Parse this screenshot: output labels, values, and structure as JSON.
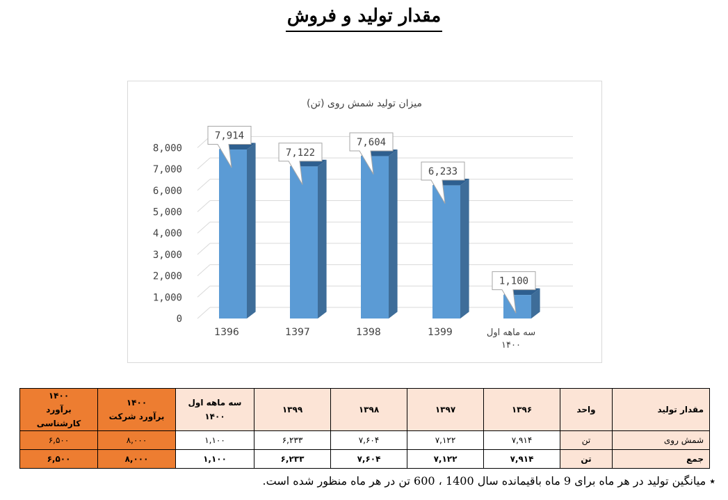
{
  "page": {
    "title": "مقدار تولید و فروش",
    "footnote": "٭ میانگین تولید در هر ماه برای 9 ماه باقیمانده سال 1400 ، 600 تن در هر ماه منظور شده است."
  },
  "chart_data": {
    "type": "bar",
    "title": "میزان تولید شمش روی (تن)",
    "categories": [
      "1396",
      "1397",
      "1398",
      "1399",
      "سه ماهه اول ۱۴۰۰"
    ],
    "category_lines": [
      [
        "1396"
      ],
      [
        "1397"
      ],
      [
        "1398"
      ],
      [
        "1399"
      ],
      [
        "سه ماهه اول",
        "۱۴۰۰"
      ]
    ],
    "values": [
      7914,
      7122,
      7604,
      6233,
      1100
    ],
    "data_labels": [
      "7,914",
      "7,122",
      "7,604",
      "6,233",
      "1,100"
    ],
    "yticks": [
      "0",
      "1,000",
      "2,000",
      "3,000",
      "4,000",
      "5,000",
      "6,000",
      "7,000",
      "8,000"
    ],
    "ylim": [
      0,
      8000
    ],
    "grid": true,
    "bar_style": "3d",
    "colors": {
      "bar_front": "#5b9bd5",
      "bar_side": "#3e6d99",
      "bar_top": "#2e5f8f",
      "grid": "#d9d9d9"
    }
  },
  "table": {
    "headers": [
      "مقدار تولید",
      "واحد",
      "۱۳۹۶",
      "۱۳۹۷",
      "۱۳۹۸",
      "۱۳۹۹",
      "سه ماهه اول ۱۴۰۰",
      "۱۴۰۰\nبرآورد شرکت",
      "۱۴۰۰\nبرآورد کارشناسی"
    ],
    "header_lines": [
      [
        "مقدار تولید"
      ],
      [
        "واحد"
      ],
      [
        "۱۳۹۶"
      ],
      [
        "۱۳۹۷"
      ],
      [
        "۱۳۹۸"
      ],
      [
        "۱۳۹۹"
      ],
      [
        "سه ماهه اول ۱۴۰۰"
      ],
      [
        "۱۴۰۰",
        "برآورد شرکت"
      ],
      [
        "۱۴۰۰",
        "برآورد کارشناسی"
      ]
    ],
    "rows": [
      [
        "شمش روی",
        "تن",
        "۷,۹۱۴",
        "۷,۱۲۲",
        "۷,۶۰۴",
        "۶,۲۳۳",
        "۱,۱۰۰",
        "۸,۰۰۰",
        "۶,۵۰۰"
      ],
      [
        "جمع",
        "تن",
        "۷,۹۱۴",
        "۷,۱۲۲",
        "۷,۶۰۴",
        "۶,۲۳۳",
        "۱,۱۰۰",
        "۸,۰۰۰",
        "۶,۵۰۰"
      ]
    ],
    "colors": {
      "header_bg": "#fce4d6",
      "estimate_bg": "#ed7d31"
    }
  }
}
